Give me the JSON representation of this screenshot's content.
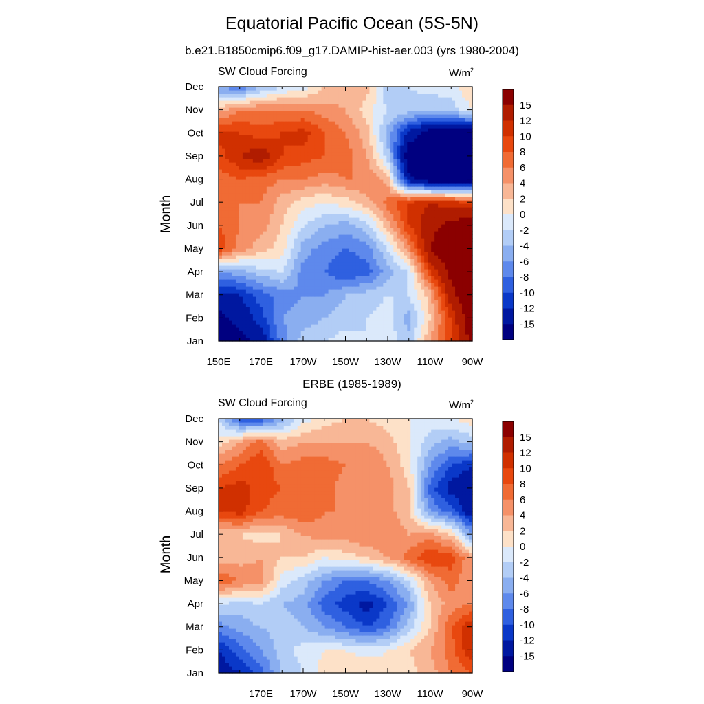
{
  "title": "Equatorial Pacific Ocean (5S-5N)",
  "subtitle": "b.e21.B1850cmip6.f09_g17.DAMIP-hist-aer.003 (yrs 1980-2004)",
  "colorbar": {
    "labels": [
      "15",
      "12",
      "10",
      "8",
      "6",
      "4",
      "2",
      "0",
      "-2",
      "-4",
      "-6",
      "-8",
      "-10",
      "-12",
      "-15"
    ],
    "colors": [
      "#8b0000",
      "#b01c00",
      "#d03000",
      "#e8480f",
      "#f06b34",
      "#f59168",
      "#f8b796",
      "#fde1c8",
      "#dbe9fb",
      "#b2cdf6",
      "#8aaef0",
      "#5e89ec",
      "#2f60e0",
      "#0a38c8",
      "#0018a0",
      "#000080"
    ]
  },
  "chart_data": [
    {
      "type": "heatmap",
      "title": "",
      "left_string": "SW Cloud Forcing",
      "units": "W/m",
      "units_sup": "2",
      "ylabel": "Month",
      "y_ticks": [
        "Jan",
        "Feb",
        "Mar",
        "Apr",
        "May",
        "Jun",
        "Jul",
        "Aug",
        "Sep",
        "Oct",
        "Nov",
        "Dec"
      ],
      "x_ticks": [
        "150E",
        "170E",
        "170W",
        "150W",
        "130W",
        "110W",
        "90W"
      ],
      "x_range": [
        "150E",
        "90W"
      ],
      "y_range": [
        "Jan",
        "Dec"
      ],
      "z_units": "W/m2",
      "z_levels": [
        -15,
        -12,
        -10,
        -8,
        -6,
        -4,
        -2,
        0,
        2,
        4,
        6,
        8,
        10,
        12,
        15
      ],
      "longitude": [
        "150E",
        "160E",
        "170E",
        "180",
        "170W",
        "160W",
        "150W",
        "140W",
        "130W",
        "120W",
        "110W",
        "100W",
        "90W"
      ],
      "month": [
        "Jan",
        "Feb",
        "Mar",
        "Apr",
        "May",
        "Jun",
        "Jul",
        "Aug",
        "Sep",
        "Oct",
        "Nov",
        "Dec"
      ],
      "values": [
        [
          -18,
          -16,
          -14,
          -7,
          -3,
          -2,
          -1,
          -2,
          -1,
          -3,
          4,
          10,
          16
        ],
        [
          -16,
          -14,
          -11,
          -6,
          -5,
          -4,
          -3,
          -2,
          -1,
          -5,
          2,
          10,
          18
        ],
        [
          -13,
          -12,
          -9,
          -7,
          -6,
          -6,
          -4,
          -3,
          -2,
          -2,
          3,
          14,
          18
        ],
        [
          -6,
          -5,
          -3,
          -2,
          -7,
          -8,
          -10,
          -9,
          -5,
          -2,
          10,
          16,
          18
        ],
        [
          10,
          5,
          3,
          1,
          -5,
          -7,
          -8,
          -7,
          -2,
          5,
          15,
          18,
          18
        ],
        [
          8,
          6,
          5,
          2,
          -2,
          -4,
          -5,
          -3,
          3,
          10,
          14,
          16,
          18
        ],
        [
          7,
          6,
          6,
          3,
          1,
          0,
          1,
          3,
          7,
          10,
          12,
          11,
          10
        ],
        [
          7,
          8,
          7,
          6,
          6,
          5,
          6,
          6,
          3,
          -14,
          -18,
          -18,
          -18
        ],
        [
          9,
          12,
          14,
          10,
          9,
          8,
          7,
          4,
          -3,
          -18,
          -18,
          -18,
          -18
        ],
        [
          11,
          10,
          9,
          10,
          11,
          8,
          6,
          3,
          -5,
          -13,
          -17,
          -18,
          -18
        ],
        [
          3,
          6,
          6,
          6,
          6,
          5,
          4,
          1,
          -2,
          -3,
          -4,
          -3,
          0
        ],
        [
          -6,
          -8,
          -4,
          -2,
          -1,
          2,
          3,
          3,
          -4,
          -2,
          -1,
          -1,
          2
        ]
      ]
    },
    {
      "type": "heatmap",
      "title": "ERBE (1985-1989)",
      "left_string": "SW Cloud Forcing",
      "units": "W/m",
      "units_sup": "2",
      "ylabel": "Month",
      "y_ticks": [
        "Jan",
        "Feb",
        "Mar",
        "Apr",
        "May",
        "Jun",
        "Jul",
        "Aug",
        "Sep",
        "Oct",
        "Nov",
        "Dec"
      ],
      "x_ticks": [
        "170E",
        "170W",
        "150W",
        "130W",
        "110W",
        "90W"
      ],
      "x_range": [
        "150E",
        "90W"
      ],
      "y_range": [
        "Jan",
        "Dec"
      ],
      "z_units": "W/m2",
      "z_levels": [
        -15,
        -12,
        -10,
        -8,
        -6,
        -4,
        -2,
        0,
        2,
        4,
        6,
        8,
        10,
        12,
        15
      ],
      "longitude": [
        "150E",
        "160E",
        "170E",
        "180",
        "170W",
        "160W",
        "150W",
        "140W",
        "130W",
        "120W",
        "110W",
        "100W",
        "90W"
      ],
      "month": [
        "Jan",
        "Feb",
        "Mar",
        "Apr",
        "May",
        "Jun",
        "Jul",
        "Aug",
        "Sep",
        "Oct",
        "Nov",
        "Dec"
      ],
      "values": [
        [
          -14,
          -12,
          -9,
          -4,
          -2,
          1,
          2,
          2,
          1,
          1,
          3,
          6,
          8
        ],
        [
          -12,
          -9,
          -6,
          -3,
          -1,
          0,
          0,
          -1,
          0,
          2,
          4,
          7,
          12
        ],
        [
          -7,
          -5,
          -4,
          -3,
          -4,
          -6,
          -8,
          -10,
          -8,
          -3,
          2,
          8,
          12
        ],
        [
          -2,
          -3,
          -2,
          -4,
          -5,
          -9,
          -11,
          -13,
          -10,
          -6,
          2,
          5,
          6
        ],
        [
          8,
          6,
          5,
          -1,
          -3,
          -6,
          -8,
          -8,
          -6,
          -2,
          4,
          7,
          4
        ],
        [
          3,
          3,
          4,
          2,
          2,
          0,
          1,
          2,
          4,
          7,
          10,
          9,
          4
        ],
        [
          2,
          2,
          1,
          2,
          4,
          5,
          5,
          6,
          6,
          4,
          5,
          2,
          -6
        ],
        [
          10,
          11,
          8,
          7,
          8,
          6,
          6,
          5,
          5,
          2,
          -6,
          -9,
          -14
        ],
        [
          10,
          11,
          9,
          8,
          8,
          7,
          5,
          6,
          5,
          2,
          -9,
          -13,
          -15
        ],
        [
          6,
          8,
          10,
          6,
          7,
          7,
          6,
          6,
          4,
          1,
          -6,
          -10,
          -12
        ],
        [
          1,
          4,
          7,
          3,
          4,
          4,
          4,
          4,
          3,
          0,
          -3,
          -5,
          -3
        ],
        [
          -2,
          -9,
          -10,
          -5,
          -1,
          1,
          2,
          2,
          1,
          0,
          -1,
          0,
          1
        ]
      ]
    }
  ]
}
